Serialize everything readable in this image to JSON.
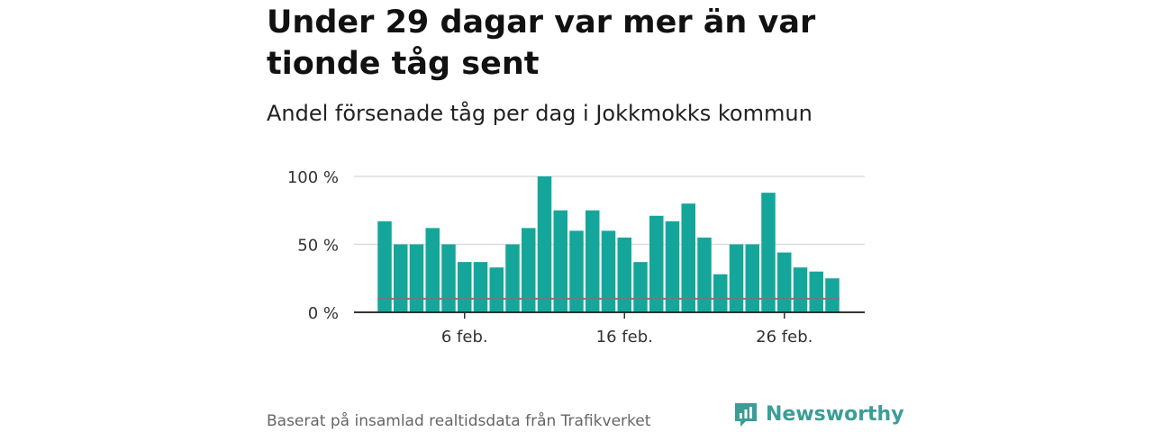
{
  "header": {
    "title": "Under 29 dagar var mer än var tionde tåg sent",
    "subtitle": "Andel försenade tåg per dag i Jokkmokks kommun"
  },
  "footer": {
    "source": "Baserat på insamlad realtidsdata från Trafikverket",
    "brand": "Newsworthy",
    "brand_icon": "newsworthy-logo-icon",
    "brand_color": "#3a9e97"
  },
  "chart_data": {
    "type": "bar",
    "categories": [
      "1 feb.",
      "2 feb.",
      "3 feb.",
      "4 feb.",
      "5 feb.",
      "6 feb.",
      "7 feb.",
      "8 feb.",
      "9 feb.",
      "10 feb.",
      "11 feb.",
      "12 feb.",
      "13 feb.",
      "14 feb.",
      "15 feb.",
      "16 feb.",
      "17 feb.",
      "18 feb.",
      "19 feb.",
      "20 feb.",
      "21 feb.",
      "22 feb.",
      "23 feb.",
      "24 feb.",
      "25 feb.",
      "26 feb.",
      "27 feb.",
      "28 feb.",
      "29 feb."
    ],
    "values": [
      67,
      50,
      50,
      62,
      50,
      37,
      37,
      33,
      50,
      62,
      100,
      75,
      60,
      75,
      60,
      55,
      37,
      71,
      67,
      80,
      55,
      28,
      50,
      50,
      88,
      44,
      33,
      30,
      25
    ],
    "x_tick_labels": [
      "6 feb.",
      "16 feb.",
      "26 feb."
    ],
    "x_tick_indices": [
      5,
      15,
      25
    ],
    "y_ticks": [
      0,
      50,
      100
    ],
    "y_tick_labels": [
      "0 %",
      "50 %",
      "100 %"
    ],
    "ylim": [
      0,
      100
    ],
    "reference_line": 10,
    "bar_color": "#15a69b",
    "reference_color": "#777777",
    "grid": true
  }
}
